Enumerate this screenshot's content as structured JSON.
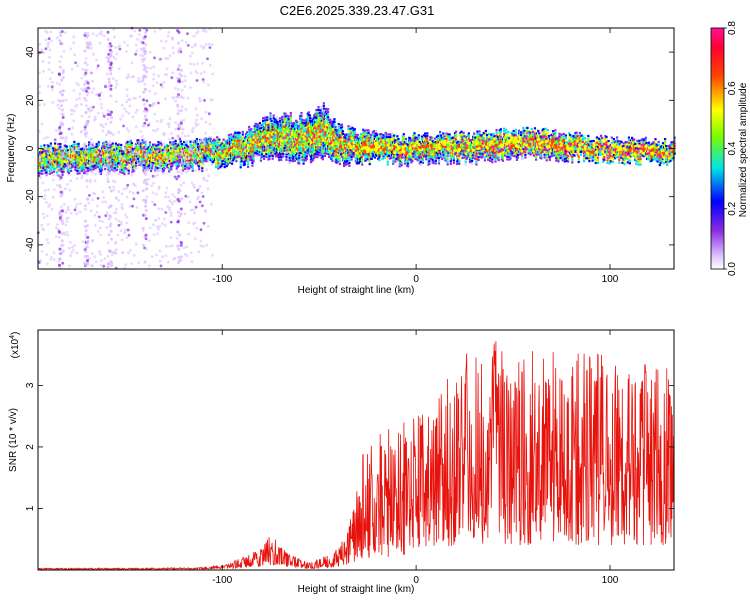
{
  "chart_data": [
    {
      "type": "heatmap",
      "title": "C2E6.2025.339.23.47.G31",
      "xlabel": "Height of straight line (km)",
      "ylabel": "Frequency (Hz)",
      "xlim": [
        -195,
        133
      ],
      "ylim": [
        -50,
        50
      ],
      "xticks": [
        -100,
        0,
        100
      ],
      "xtick_labels": [
        "-100",
        "0",
        "100"
      ],
      "yticks": [
        -40,
        -20,
        0,
        20,
        40
      ],
      "ytick_labels": [
        "-40",
        "-20",
        "0",
        "20",
        "40"
      ],
      "ridge": {
        "x": [
          -195,
          -170,
          -150,
          -130,
          -110,
          -90,
          -75,
          -60,
          -48,
          -40,
          -30,
          -10,
          10,
          30,
          50,
          70,
          90,
          110,
          133
        ],
        "center_hz": [
          -4,
          -3,
          -3,
          -2,
          -2,
          0,
          6,
          4,
          8,
          2,
          1,
          0,
          1,
          1,
          3,
          2,
          0,
          -1,
          -1
        ],
        "half_width_hz": [
          5,
          5,
          5,
          5,
          5,
          6,
          8,
          9,
          10,
          7,
          6,
          5,
          5,
          5,
          5,
          5,
          4,
          4,
          4
        ]
      },
      "colorbar": {
        "label": "Normalized spectral amplitude",
        "ticks": [
          0.0,
          0.2,
          0.4,
          0.6,
          0.8
        ],
        "tick_labels": [
          "0.0",
          "0.2",
          "0.4",
          "0.6",
          "0.8"
        ],
        "range": [
          0,
          0.8
        ]
      },
      "colors": [
        "#e0c8ff",
        "#8a2be2",
        "#0000ff",
        "#00e5e5",
        "#7cfc00",
        "#ffff00",
        "#ff4500",
        "#ff1493"
      ]
    },
    {
      "type": "line",
      "xlabel": "Height of straight line (km)",
      "ylabel": "SNR (10 * v/v)",
      "multiplier_label": "(x10",
      "multiplier_exp": "4",
      "multiplier_close": ")",
      "xlim": [
        -195,
        133
      ],
      "ylim": [
        0,
        3.9
      ],
      "xticks": [
        -100,
        0,
        100
      ],
      "xtick_labels": [
        "-100",
        "0",
        "100"
      ],
      "yticks": [
        1,
        2,
        3
      ],
      "ytick_labels": [
        "1",
        "2",
        "3"
      ],
      "line_color": "#e8120c",
      "series": [
        {
          "name": "SNR",
          "x": [
            -195,
            -150,
            -110,
            -100,
            -90,
            -80,
            -75,
            -70,
            -65,
            -55,
            -42,
            -37,
            -33,
            -28,
            -24,
            -20,
            -12,
            -5,
            0,
            10,
            20,
            30,
            40,
            50,
            60,
            70,
            80,
            90,
            100,
            110,
            120,
            133
          ],
          "envelope": [
            0.03,
            0.03,
            0.04,
            0.08,
            0.2,
            0.35,
            0.6,
            0.4,
            0.25,
            0.12,
            0.3,
            0.6,
            0.9,
            1.8,
            2.3,
            2.3,
            2.3,
            2.5,
            2.5,
            2.7,
            3.6,
            3.5,
            3.8,
            3.3,
            3.6,
            3.6,
            3.6,
            3.6,
            3.5,
            3.2,
            3.4,
            3.3
          ],
          "baseline": [
            0.01,
            0.01,
            0.01,
            0.02,
            0.03,
            0.05,
            0.08,
            0.06,
            0.04,
            0.02,
            0.05,
            0.08,
            0.1,
            0.15,
            0.2,
            0.2,
            0.2,
            0.25,
            0.3,
            0.35,
            0.4,
            0.4,
            0.45,
            0.4,
            0.4,
            0.4,
            0.4,
            0.4,
            0.4,
            0.4,
            0.4,
            0.4
          ]
        }
      ]
    }
  ]
}
